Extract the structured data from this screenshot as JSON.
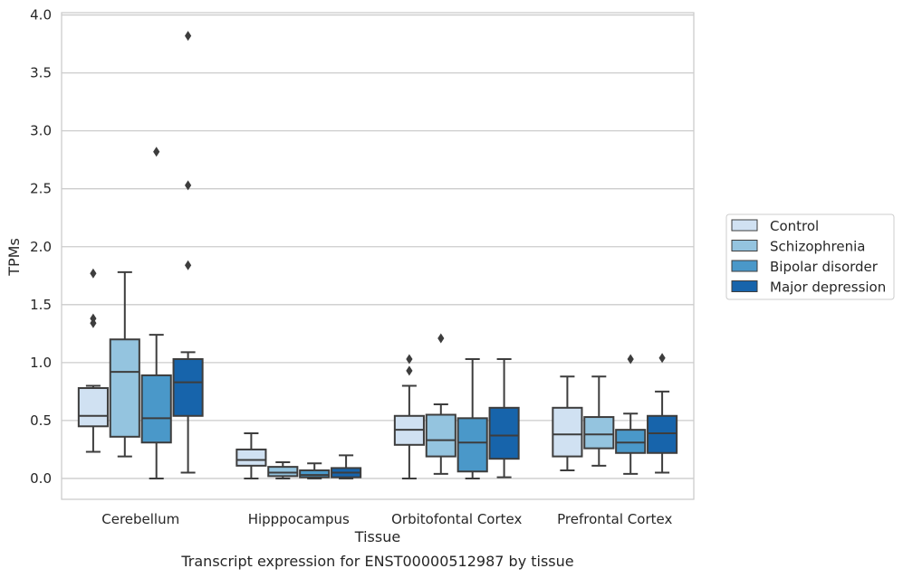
{
  "chart_data": {
    "type": "box",
    "xlabel": "Tissue",
    "ylabel": "TPMs",
    "caption": "Transcript expression for ENST00000512987 by tissue",
    "ylim": [
      -0.18,
      4.02
    ],
    "yticks": [
      "0.0",
      "0.5",
      "1.0",
      "1.5",
      "2.0",
      "2.5",
      "3.0",
      "3.5",
      "4.0"
    ],
    "ytick_values": [
      0,
      0.5,
      1.0,
      1.5,
      2.0,
      2.5,
      3.0,
      3.5,
      4.0
    ],
    "grid": "horizontal",
    "legend_position": "right",
    "categories": [
      "Cerebellum",
      "Hipppocampus",
      "Orbitofontal Cortex",
      "Prefrontal Cortex"
    ],
    "series": [
      {
        "name": "Control",
        "color": "#d0e1f2",
        "boxes": [
          {
            "whislo": 0.23,
            "q1": 0.45,
            "med": 0.54,
            "q3": 0.78,
            "whishi": 0.8,
            "fliers": [
              1.34,
              1.38,
              1.77
            ]
          },
          {
            "whislo": 0.0,
            "q1": 0.11,
            "med": 0.16,
            "q3": 0.25,
            "whishi": 0.39,
            "fliers": []
          },
          {
            "whislo": 0.0,
            "q1": 0.29,
            "med": 0.42,
            "q3": 0.54,
            "whishi": 0.8,
            "fliers": [
              0.93,
              1.03
            ]
          },
          {
            "whislo": 0.07,
            "q1": 0.19,
            "med": 0.38,
            "q3": 0.61,
            "whishi": 0.88,
            "fliers": []
          }
        ]
      },
      {
        "name": "Schizophrenia",
        "color": "#94c4df",
        "boxes": [
          {
            "whislo": 0.19,
            "q1": 0.36,
            "med": 0.92,
            "q3": 1.2,
            "whishi": 1.78,
            "fliers": []
          },
          {
            "whislo": 0.0,
            "q1": 0.02,
            "med": 0.05,
            "q3": 0.1,
            "whishi": 0.14,
            "fliers": []
          },
          {
            "whislo": 0.04,
            "q1": 0.19,
            "med": 0.33,
            "q3": 0.55,
            "whishi": 0.64,
            "fliers": [
              1.21
            ]
          },
          {
            "whislo": 0.11,
            "q1": 0.26,
            "med": 0.38,
            "q3": 0.53,
            "whishi": 0.88,
            "fliers": []
          }
        ]
      },
      {
        "name": "Bipolar disorder",
        "color": "#4a98c9",
        "boxes": [
          {
            "whislo": 0.0,
            "q1": 0.31,
            "med": 0.52,
            "q3": 0.89,
            "whishi": 1.24,
            "fliers": [
              2.82
            ]
          },
          {
            "whislo": 0.0,
            "q1": 0.01,
            "med": 0.03,
            "q3": 0.07,
            "whishi": 0.13,
            "fliers": []
          },
          {
            "whislo": 0.0,
            "q1": 0.06,
            "med": 0.31,
            "q3": 0.52,
            "whishi": 1.03,
            "fliers": []
          },
          {
            "whislo": 0.04,
            "q1": 0.22,
            "med": 0.31,
            "q3": 0.42,
            "whishi": 0.56,
            "fliers": [
              1.03
            ]
          }
        ]
      },
      {
        "name": "Major depression",
        "color": "#1764ab",
        "boxes": [
          {
            "whislo": 0.05,
            "q1": 0.54,
            "med": 0.83,
            "q3": 1.03,
            "whishi": 1.09,
            "fliers": [
              1.84,
              2.53,
              3.82
            ]
          },
          {
            "whislo": 0.0,
            "q1": 0.01,
            "med": 0.05,
            "q3": 0.09,
            "whishi": 0.2,
            "fliers": []
          },
          {
            "whislo": 0.01,
            "q1": 0.17,
            "med": 0.37,
            "q3": 0.61,
            "whishi": 1.03,
            "fliers": []
          },
          {
            "whislo": 0.05,
            "q1": 0.22,
            "med": 0.39,
            "q3": 0.54,
            "whishi": 0.75,
            "fliers": [
              1.04
            ]
          }
        ]
      }
    ]
  }
}
